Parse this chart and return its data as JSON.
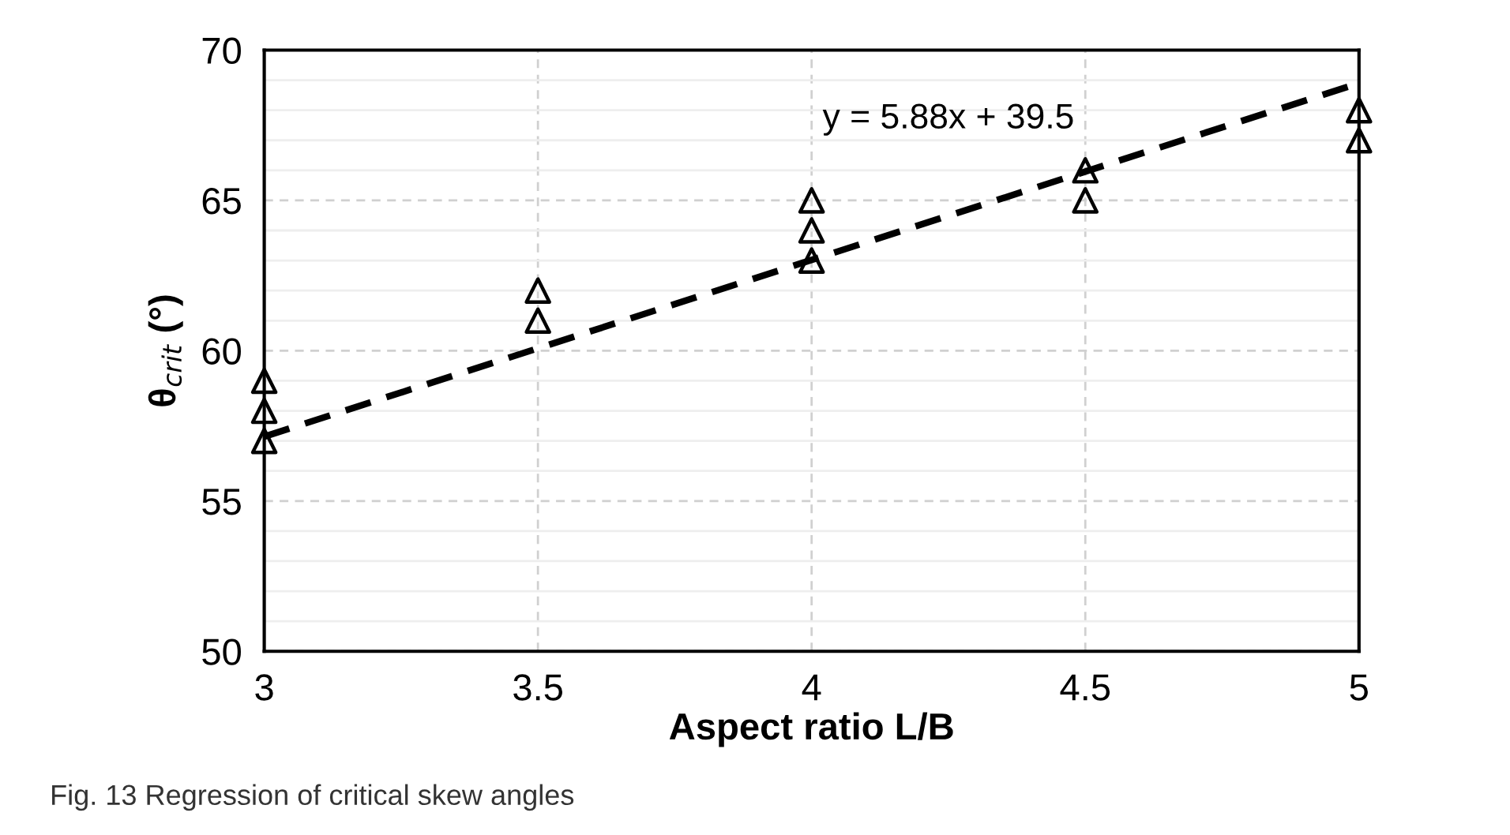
{
  "chart_data": {
    "type": "scatter",
    "xlabel": "Aspect ratio L/B",
    "ylabel": "θ$_{crit}$ (°)",
    "xlim": [
      3,
      5
    ],
    "xticks": [
      3,
      3.5,
      4,
      4.5,
      5
    ],
    "ylim": [
      50,
      70
    ],
    "yticks": [
      50,
      {
        "value": 51,
        "label": null
      },
      {
        "value": 52,
        "label": null
      },
      {
        "value": 53,
        "label": null
      },
      {
        "value": 54,
        "label": null
      },
      55,
      {
        "value": 56,
        "label": null
      },
      {
        "value": 57,
        "label": null
      },
      {
        "value": 58,
        "label": null
      },
      {
        "value": 59,
        "label": null
      },
      60,
      {
        "value": 61,
        "label": null
      },
      {
        "value": 62,
        "label": null
      },
      {
        "value": 63,
        "label": null
      },
      {
        "value": 64,
        "label": null
      },
      65,
      {
        "value": 66,
        "label": null
      },
      {
        "value": 67,
        "label": null
      },
      {
        "value": 68,
        "label": null
      },
      {
        "value": 69,
        "label": null
      },
      70
    ],
    "grid": true,
    "legend": false,
    "series": [
      {
        "color": "#000000",
        "marker": "triangle",
        "x": [
          3,
          3,
          3,
          3.5,
          3.5,
          4,
          4,
          4,
          4.5,
          4.5,
          5,
          5
        ],
        "values": [
          57,
          58,
          59,
          61,
          62,
          63,
          64,
          65,
          65,
          66,
          67,
          68
        ]
      },
      {
        "type": "line",
        "color": "#000000",
        "line_style": "dashed",
        "marker": "none",
        "x": [
          3,
          5
        ],
        "values": [
          57.14,
          68.9
        ]
      }
    ],
    "annotations": [
      "y = 5.88x + 39.5",
      "Fig. 13 Regression of critical skew angles"
    ]
  }
}
